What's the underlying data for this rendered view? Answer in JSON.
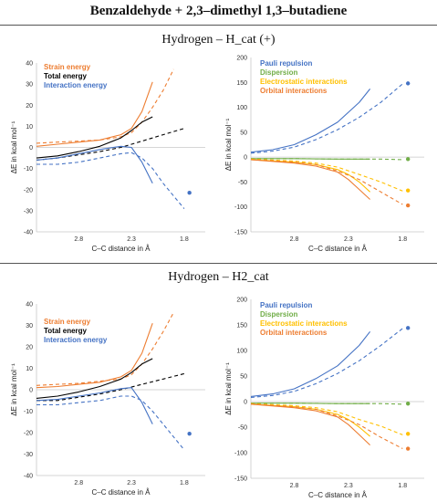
{
  "title": "Benzaldehyde + 2,3–dimethyl 1,3–butadiene",
  "section1_title": "Hydrogen – H_cat (+)",
  "section2_title": "Hydrogen – H2_cat",
  "colors": {
    "strain": "#ed7d31",
    "total": "#000000",
    "interaction": "#4472c4",
    "pauli": "#4472c4",
    "dispersion": "#70ad47",
    "electrostatic": "#ffc000",
    "orbital": "#ed7d31"
  },
  "chart_data": [
    {
      "type": "line",
      "title": "",
      "xlabel": "C–C distance in Å",
      "ylabel": "ΔE in kcal mol⁻¹",
      "xlim": [
        3.2,
        1.6
      ],
      "ylim": [
        -40,
        40
      ],
      "xticks": [
        "2.8",
        "2.3",
        "1.8"
      ],
      "yticks": [
        "40",
        "30",
        "20",
        "10",
        "0",
        "-10",
        "-20",
        "-30",
        "-40"
      ],
      "legend": [
        "Strain energy",
        "Total energy",
        "Interaction energy"
      ],
      "series": [
        {
          "name": "Strain energy",
          "color": "#ed7d31",
          "style": "solid",
          "x": [
            3.2,
            3.0,
            2.8,
            2.6,
            2.4,
            2.3,
            2.2,
            2.1
          ],
          "y": [
            0.5,
            1.5,
            2.5,
            3.5,
            6,
            9,
            17,
            31
          ]
        },
        {
          "name": "Strain energy",
          "color": "#ed7d31",
          "style": "dashed",
          "x": [
            3.2,
            3.0,
            2.8,
            2.6,
            2.4,
            2.3,
            2.2,
            2.1,
            2.0,
            1.9
          ],
          "y": [
            2,
            2.5,
            3,
            3.5,
            5,
            7,
            12,
            19,
            27,
            37
          ]
        },
        {
          "name": "Total energy",
          "color": "#000000",
          "style": "solid",
          "x": [
            3.2,
            3.0,
            2.8,
            2.6,
            2.4,
            2.3,
            2.2,
            2.1
          ],
          "y": [
            -5,
            -4,
            -2,
            0.5,
            4.5,
            8,
            12,
            14.5
          ]
        },
        {
          "name": "Total energy",
          "color": "#000000",
          "style": "dashed",
          "x": [
            3.2,
            3.0,
            2.8,
            2.6,
            2.4,
            2.2,
            2.0,
            1.8
          ],
          "y": [
            -6,
            -5,
            -3.5,
            -2,
            0,
            3,
            6,
            9
          ]
        },
        {
          "name": "Interaction energy",
          "color": "#4472c4",
          "style": "solid",
          "x": [
            3.2,
            3.0,
            2.8,
            2.6,
            2.4,
            2.3,
            2.2,
            2.1
          ],
          "y": [
            -6,
            -5,
            -3,
            -1,
            0.5,
            0,
            -7,
            -17
          ]
        },
        {
          "name": "Interaction energy",
          "color": "#4472c4",
          "style": "dashed",
          "x": [
            3.2,
            3.0,
            2.8,
            2.6,
            2.4,
            2.3,
            2.2,
            2.1,
            2.0,
            1.9,
            1.8
          ],
          "y": [
            -8,
            -8,
            -7,
            -5,
            -3,
            -2.5,
            -5,
            -10,
            -17,
            -23,
            -29
          ]
        },
        {
          "name": "Interaction energy",
          "color": "#4472c4",
          "style": "point",
          "x": [
            1.75
          ],
          "y": [
            -21.5
          ]
        }
      ]
    },
    {
      "type": "line",
      "title": "",
      "xlabel": "C–C distance in Å",
      "ylabel": "ΔE in kcal mol⁻¹",
      "xlim": [
        3.2,
        1.6
      ],
      "ylim": [
        -150,
        200
      ],
      "xticks": [
        "2.8",
        "2.3",
        "1.8"
      ],
      "yticks": [
        "200",
        "150",
        "100",
        "50",
        "0",
        "-50",
        "-100",
        "-150"
      ],
      "legend": [
        "Pauli repulsion",
        "Dispersion",
        "Electrostatic interactions",
        "Orbital interactions"
      ],
      "series": [
        {
          "name": "Pauli repulsion",
          "color": "#4472c4",
          "style": "solid",
          "x": [
            3.2,
            3.0,
            2.8,
            2.6,
            2.4,
            2.3,
            2.2,
            2.1
          ],
          "y": [
            10,
            15,
            25,
            45,
            70,
            90,
            110,
            137
          ]
        },
        {
          "name": "Pauli repulsion",
          "color": "#4472c4",
          "style": "dashed",
          "x": [
            3.2,
            3.0,
            2.8,
            2.6,
            2.4,
            2.2,
            2.0,
            1.8
          ],
          "y": [
            8,
            12,
            20,
            35,
            55,
            80,
            110,
            147
          ]
        },
        {
          "name": "Pauli repulsion",
          "color": "#4472c4",
          "style": "point",
          "x": [
            1.75
          ],
          "y": [
            148
          ]
        },
        {
          "name": "Dispersion",
          "color": "#70ad47",
          "style": "solid",
          "x": [
            3.2,
            2.8,
            2.4,
            2.1
          ],
          "y": [
            -3,
            -3,
            -4,
            -4
          ]
        },
        {
          "name": "Dispersion",
          "color": "#70ad47",
          "style": "dashed",
          "x": [
            3.2,
            2.8,
            2.4,
            2.0,
            1.8
          ],
          "y": [
            -3,
            -3,
            -4,
            -4,
            -5
          ]
        },
        {
          "name": "Dispersion",
          "color": "#70ad47",
          "style": "point",
          "x": [
            1.75
          ],
          "y": [
            -4
          ]
        },
        {
          "name": "Electrostatic interactions",
          "color": "#ffc000",
          "style": "solid",
          "x": [
            3.2,
            2.8,
            2.6,
            2.4,
            2.3,
            2.2,
            2.1
          ],
          "y": [
            -5,
            -10,
            -15,
            -25,
            -35,
            -50,
            -70
          ]
        },
        {
          "name": "Electrostatic interactions",
          "color": "#ffc000",
          "style": "dashed",
          "x": [
            3.2,
            2.8,
            2.6,
            2.4,
            2.2,
            2.0,
            1.8
          ],
          "y": [
            -4,
            -8,
            -12,
            -20,
            -35,
            -50,
            -68
          ]
        },
        {
          "name": "Electrostatic interactions",
          "color": "#ffc000",
          "style": "point",
          "x": [
            1.75
          ],
          "y": [
            -67
          ]
        },
        {
          "name": "Orbital interactions",
          "color": "#ed7d31",
          "style": "solid",
          "x": [
            3.2,
            2.8,
            2.6,
            2.4,
            2.3,
            2.2,
            2.1
          ],
          "y": [
            -5,
            -12,
            -18,
            -30,
            -45,
            -65,
            -85
          ]
        },
        {
          "name": "Orbital interactions",
          "color": "#ed7d31",
          "style": "dashed",
          "x": [
            3.2,
            2.8,
            2.6,
            2.4,
            2.2,
            2.0,
            1.8
          ],
          "y": [
            -5,
            -10,
            -15,
            -28,
            -45,
            -70,
            -95
          ]
        },
        {
          "name": "Orbital interactions",
          "color": "#ed7d31",
          "style": "point",
          "x": [
            1.75
          ],
          "y": [
            -97
          ]
        }
      ]
    },
    {
      "type": "line",
      "title": "",
      "xlabel": "C–C distance in Å",
      "ylabel": "ΔE in kcal mol⁻¹",
      "xlim": [
        3.2,
        1.6
      ],
      "ylim": [
        -40,
        40
      ],
      "xticks": [
        "2.8",
        "2.3",
        "1.8"
      ],
      "yticks": [
        "40",
        "30",
        "20",
        "10",
        "0",
        "-10",
        "-20",
        "-30",
        "-40"
      ],
      "legend": [
        "Strain energy",
        "Total energy",
        "Interaction energy"
      ],
      "series": [
        {
          "name": "Strain energy",
          "color": "#ed7d31",
          "style": "solid",
          "x": [
            3.2,
            3.0,
            2.8,
            2.6,
            2.4,
            2.3,
            2.2,
            2.1
          ],
          "y": [
            1,
            1.5,
            2.5,
            3.5,
            6,
            9,
            17,
            31
          ]
        },
        {
          "name": "Strain energy",
          "color": "#ed7d31",
          "style": "dashed",
          "x": [
            3.2,
            3.0,
            2.8,
            2.6,
            2.4,
            2.3,
            2.2,
            2.1,
            2.0,
            1.9
          ],
          "y": [
            2,
            2.5,
            3,
            4,
            5,
            7,
            12,
            19,
            27,
            36
          ]
        },
        {
          "name": "Total energy",
          "color": "#000000",
          "style": "solid",
          "x": [
            3.2,
            3.0,
            2.8,
            2.6,
            2.4,
            2.3,
            2.2,
            2.1
          ],
          "y": [
            -4,
            -3,
            -1,
            1.5,
            5,
            8,
            12,
            14.5
          ]
        },
        {
          "name": "Total energy",
          "color": "#000000",
          "style": "dashed",
          "x": [
            3.2,
            3.0,
            2.8,
            2.6,
            2.4,
            2.2,
            2.0,
            1.8
          ],
          "y": [
            -5,
            -5,
            -3.5,
            -2,
            0,
            2.5,
            5,
            7.5
          ]
        },
        {
          "name": "Interaction energy",
          "color": "#4472c4",
          "style": "solid",
          "x": [
            3.2,
            3.0,
            2.8,
            2.6,
            2.4,
            2.3,
            2.2,
            2.1
          ],
          "y": [
            -5,
            -4.5,
            -3,
            -1.5,
            0.5,
            1,
            -6,
            -16
          ]
        },
        {
          "name": "Interaction energy",
          "color": "#4472c4",
          "style": "dashed",
          "x": [
            3.2,
            3.0,
            2.8,
            2.6,
            2.4,
            2.3,
            2.2,
            2.1,
            2.0,
            1.9,
            1.8
          ],
          "y": [
            -7,
            -7,
            -6,
            -5,
            -3,
            -3,
            -5,
            -10,
            -16,
            -22,
            -28
          ]
        },
        {
          "name": "Interaction energy",
          "color": "#4472c4",
          "style": "point",
          "x": [
            1.75
          ],
          "y": [
            -20.5
          ]
        }
      ]
    },
    {
      "type": "line",
      "title": "",
      "xlabel": "C–C distance in Å",
      "ylabel": "ΔE in kcal mol⁻¹",
      "xlim": [
        3.2,
        1.6
      ],
      "ylim": [
        -150,
        200
      ],
      "xticks": [
        "2.8",
        "2.3",
        "1.8"
      ],
      "yticks": [
        "200",
        "150",
        "100",
        "50",
        "0",
        "-50",
        "-100",
        "-150"
      ],
      "legend": [
        "Pauli repulsion",
        "Dispersion",
        "Electrostatic interactions",
        "Orbital interactions"
      ],
      "series": [
        {
          "name": "Pauli repulsion",
          "color": "#4472c4",
          "style": "solid",
          "x": [
            3.2,
            3.0,
            2.8,
            2.6,
            2.4,
            2.3,
            2.2,
            2.1
          ],
          "y": [
            10,
            15,
            25,
            45,
            70,
            90,
            110,
            137
          ]
        },
        {
          "name": "Pauli repulsion",
          "color": "#4472c4",
          "style": "dashed",
          "x": [
            3.2,
            3.0,
            2.8,
            2.6,
            2.4,
            2.2,
            2.0,
            1.8
          ],
          "y": [
            8,
            12,
            20,
            35,
            55,
            80,
            110,
            143
          ]
        },
        {
          "name": "Pauli repulsion",
          "color": "#4472c4",
          "style": "point",
          "x": [
            1.75
          ],
          "y": [
            144
          ]
        },
        {
          "name": "Dispersion",
          "color": "#70ad47",
          "style": "solid",
          "x": [
            3.2,
            2.8,
            2.4,
            2.1
          ],
          "y": [
            -3,
            -3,
            -4,
            -4
          ]
        },
        {
          "name": "Dispersion",
          "color": "#70ad47",
          "style": "dashed",
          "x": [
            3.2,
            2.8,
            2.4,
            2.0,
            1.8
          ],
          "y": [
            -3,
            -3,
            -4,
            -4,
            -5
          ]
        },
        {
          "name": "Dispersion",
          "color": "#70ad47",
          "style": "point",
          "x": [
            1.75
          ],
          "y": [
            -4
          ]
        },
        {
          "name": "Electrostatic interactions",
          "color": "#ffc000",
          "style": "solid",
          "x": [
            3.2,
            2.8,
            2.6,
            2.4,
            2.3,
            2.2,
            2.1
          ],
          "y": [
            -5,
            -10,
            -15,
            -25,
            -35,
            -50,
            -68
          ]
        },
        {
          "name": "Electrostatic interactions",
          "color": "#ffc000",
          "style": "dashed",
          "x": [
            3.2,
            2.8,
            2.6,
            2.4,
            2.2,
            2.0,
            1.8
          ],
          "y": [
            -4,
            -8,
            -12,
            -20,
            -35,
            -48,
            -65
          ]
        },
        {
          "name": "Electrostatic interactions",
          "color": "#ffc000",
          "style": "point",
          "x": [
            1.75
          ],
          "y": [
            -63
          ]
        },
        {
          "name": "Orbital interactions",
          "color": "#ed7d31",
          "style": "solid",
          "x": [
            3.2,
            2.8,
            2.6,
            2.4,
            2.3,
            2.2,
            2.1
          ],
          "y": [
            -5,
            -12,
            -18,
            -30,
            -45,
            -65,
            -85
          ]
        },
        {
          "name": "Orbital interactions",
          "color": "#ed7d31",
          "style": "dashed",
          "x": [
            3.2,
            2.8,
            2.6,
            2.4,
            2.2,
            2.0,
            1.8
          ],
          "y": [
            -5,
            -10,
            -15,
            -28,
            -45,
            -70,
            -92
          ]
        },
        {
          "name": "Orbital interactions",
          "color": "#ed7d31",
          "style": "point",
          "x": [
            1.75
          ],
          "y": [
            -92
          ]
        }
      ]
    }
  ]
}
